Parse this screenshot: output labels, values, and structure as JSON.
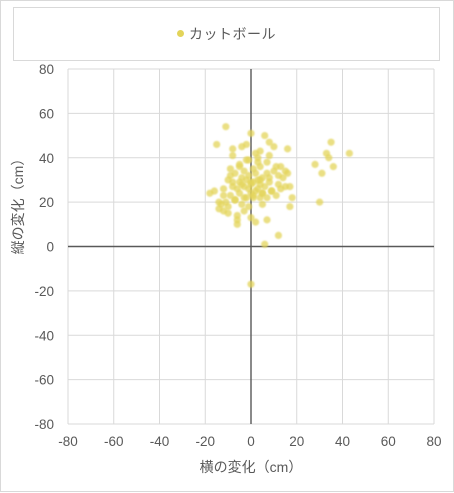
{
  "chart_data": {
    "type": "scatter",
    "title": "",
    "xlabel": "横の変化（cm）",
    "ylabel": "縦の変化（cm）",
    "xlim": [
      -80,
      80
    ],
    "ylim": [
      -80,
      80
    ],
    "x_ticks": [
      -80,
      -60,
      -40,
      -20,
      0,
      20,
      40,
      60,
      80
    ],
    "y_ticks": [
      -80,
      -60,
      -40,
      -20,
      0,
      20,
      40,
      60,
      80
    ],
    "grid": true,
    "legend_position": "top",
    "colors": {
      "point": "#e3d45a",
      "axis_line": "#595959",
      "grid": "#d9d9d9"
    },
    "series": [
      {
        "name": "カットボール",
        "x": [
          -15,
          -14,
          -13,
          -12,
          -11,
          -10,
          -10,
          -9,
          -9,
          -8,
          -8,
          -7,
          -7,
          -6,
          -6,
          -6,
          -5,
          -5,
          -5,
          -4,
          -4,
          -4,
          -3,
          -3,
          -3,
          -2,
          -2,
          -2,
          -1,
          -1,
          -1,
          0,
          0,
          0,
          1,
          1,
          1,
          2,
          2,
          2,
          3,
          3,
          3,
          4,
          4,
          4,
          5,
          5,
          5,
          6,
          6,
          7,
          7,
          8,
          8,
          9,
          10,
          11,
          12,
          13,
          14,
          15,
          16,
          17,
          18,
          -18,
          -16,
          -12,
          -8,
          -4,
          0,
          4,
          8,
          12,
          16,
          -9,
          -5,
          -1,
          3,
          7,
          11,
          15,
          -11,
          -7,
          -3,
          1,
          5,
          9,
          13,
          17,
          28,
          30,
          31,
          33,
          34,
          35,
          36,
          43,
          6,
          12,
          0,
          -10,
          -6,
          0,
          7,
          2,
          4,
          8,
          -2,
          10,
          -14,
          -12,
          -8
        ],
        "y": [
          46,
          20,
          19,
          23,
          54,
          30,
          18,
          32,
          23,
          29,
          41,
          33,
          21,
          26,
          12,
          10,
          24,
          36,
          29,
          45,
          31,
          19,
          27,
          16,
          34,
          22,
          39,
          30,
          26,
          18,
          32,
          51,
          24,
          28,
          35,
          22,
          29,
          33,
          25,
          42,
          26,
          30,
          38,
          22,
          28,
          36,
          31,
          24,
          19,
          50,
          27,
          33,
          22,
          29,
          41,
          25,
          34,
          23,
          28,
          36,
          31,
          27,
          44,
          18,
          22,
          24,
          25,
          26,
          27,
          28,
          29,
          30,
          31,
          32,
          33,
          35,
          37,
          39,
          40,
          38,
          36,
          34,
          20,
          21,
          22,
          23,
          24,
          25,
          26,
          27,
          37,
          20,
          33,
          42,
          40,
          47,
          36,
          42,
          1,
          5,
          -17,
          15,
          14,
          13,
          12,
          11,
          43,
          47,
          46,
          45,
          17,
          16,
          44
        ]
      }
    ]
  }
}
